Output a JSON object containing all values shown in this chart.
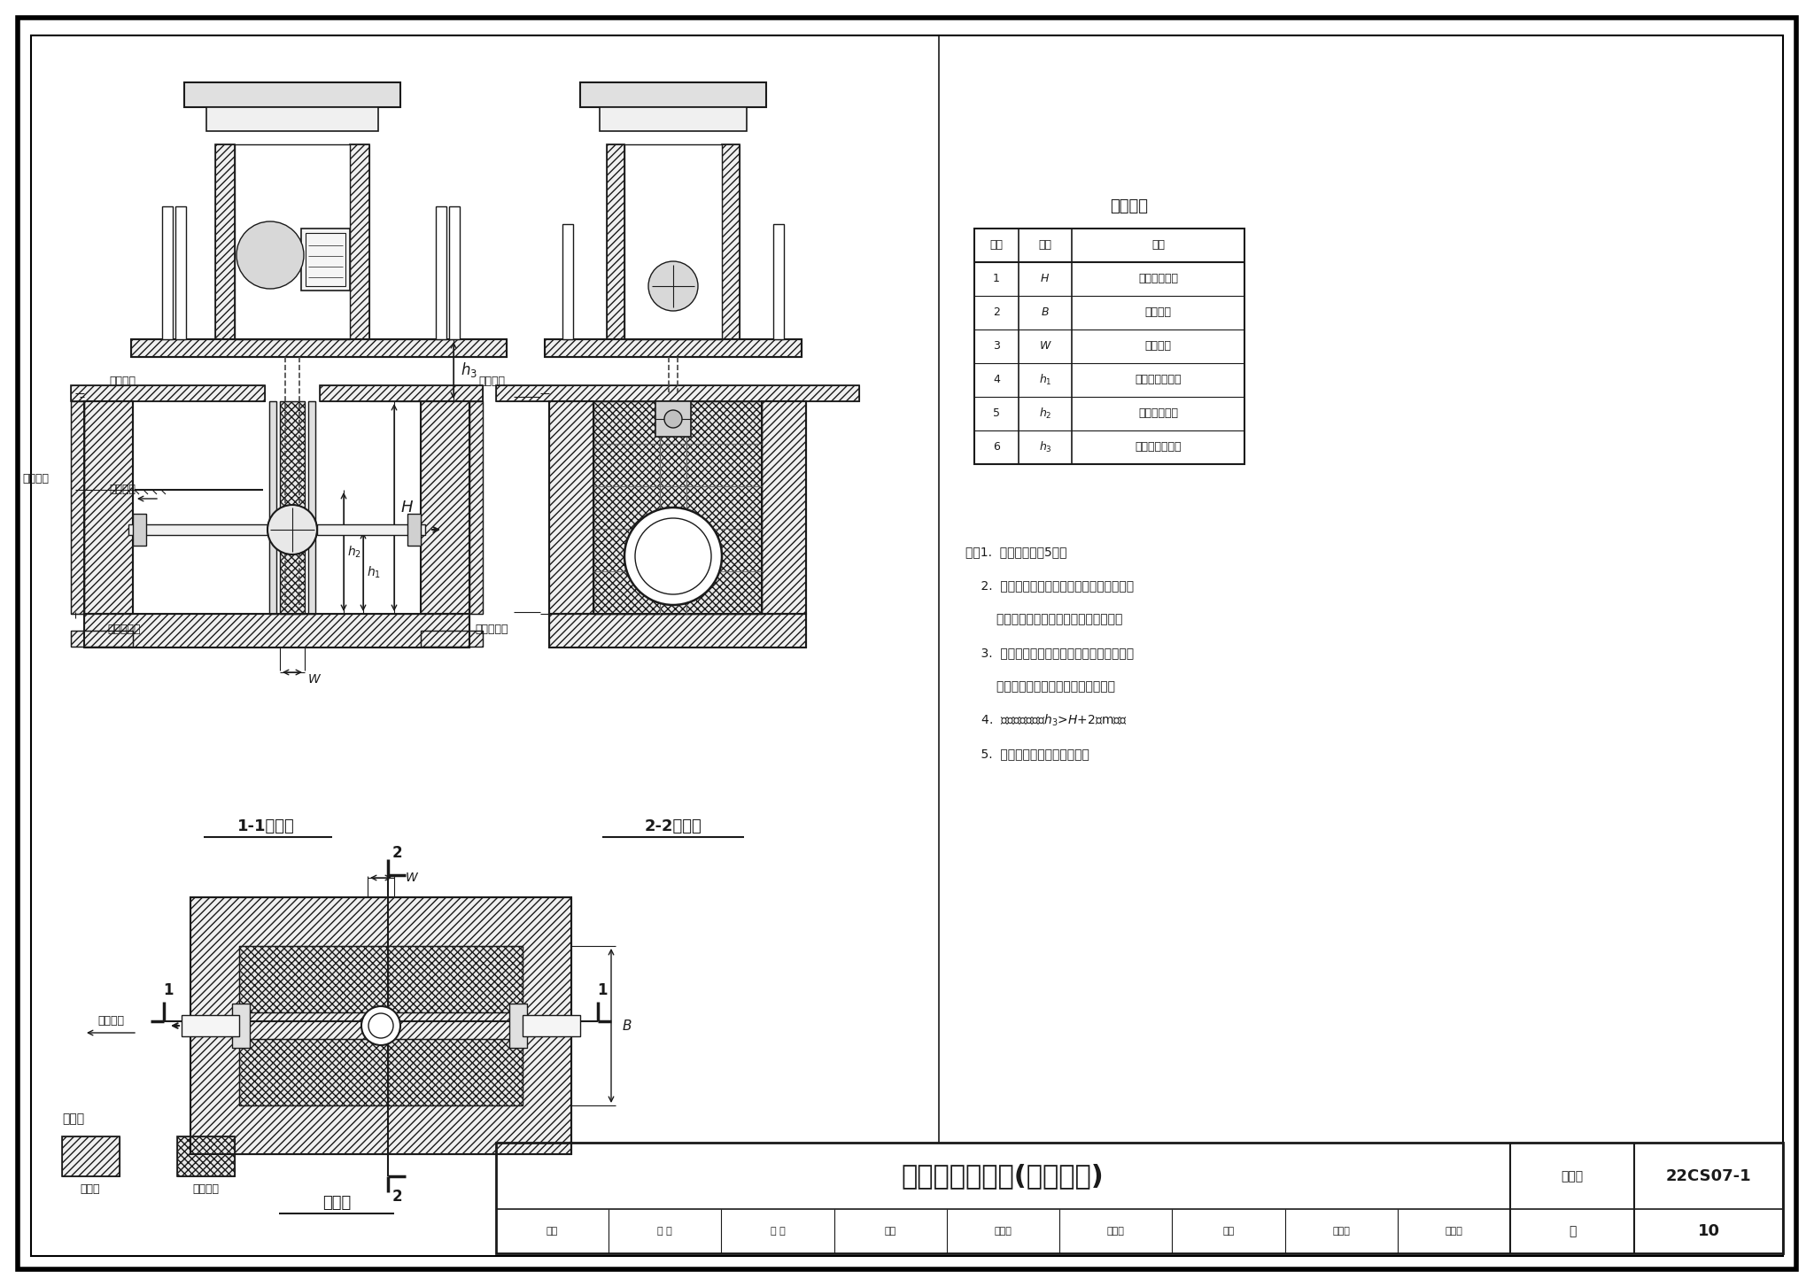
{
  "title": "泵闸系统示意图(垂直上拉)",
  "figure_number": "22CS07-1",
  "page": "10",
  "bg": "#ffffff",
  "lc": "#1a1a1a",
  "table_title": "尺寸说明",
  "table_headers": [
    "序号",
    "字母",
    "说明"
  ],
  "table_rows": [
    [
      "1",
      "H",
      "工作闸门高度"
    ],
    [
      "2",
      "B",
      "闸孔宽度"
    ],
    [
      "3",
      "W",
      "闸门厚度"
    ],
    [
      "4",
      "h1",
      "闸泵安装中心高"
    ],
    [
      "5",
      "h2",
      "闸泵淹没深度"
    ],
    [
      "6",
      "h3",
      "启闭机安装高度"
    ]
  ],
  "notes": [
    "注：1.  图中尺寸见第5页。",
    "    2.  根据设计需要，可选择单闸双泵，或单闸",
    "        单泵的形式，具体尺寸见闸门大样图。",
    "    3.  卷扬启闭机可根据要求选择单吊点或双吊",
    "        点，具体尺寸见卷扬启闭机大样图。",
    "    4.  启闭机安装高度h3>H+2（m）。",
    "    5.  本图适用于单向输水工况。"
  ],
  "footer": [
    "审核",
    "李 靖",
    "金 靖",
    "校对",
    "刘文骞",
    "弓义青",
    "设计",
    "守芳仪",
    "齐昊仪"
  ]
}
